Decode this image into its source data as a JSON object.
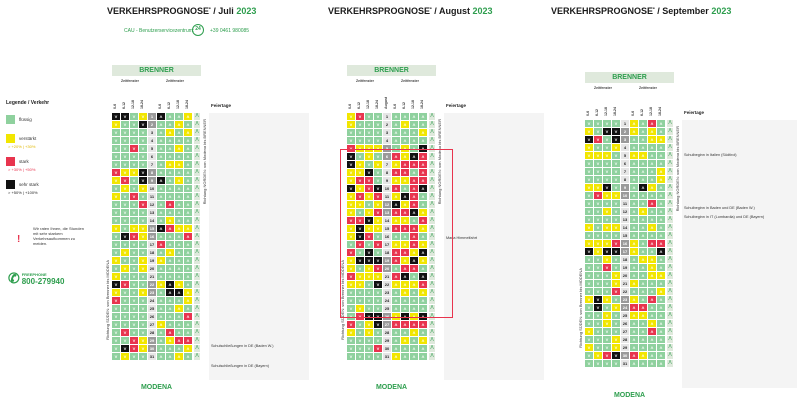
{
  "titles": {
    "juli": {
      "main": "VERKEHRSPROGNOSE",
      "sup": "•",
      "month": " / Juli ",
      "year": "2023"
    },
    "august": {
      "main": "VERKEHRSPROGNOSE",
      "sup": "•",
      "month": " / August ",
      "year": "2023"
    },
    "september": {
      "main": "VERKEHRSPROGNOSE",
      "sup": "•",
      "month": " / September ",
      "year": "2023"
    }
  },
  "cau": {
    "label": "CAU - Benutzerservicezentrum:",
    "icon_text": "24",
    "phone": "+39 0461 980085"
  },
  "legend": {
    "title": "Legende / Verkehr",
    "items": [
      {
        "color": "#8fd19e",
        "label": "flüssig",
        "range": ""
      },
      {
        "color": "#f2e600",
        "label": "verstärkt",
        "range": "> +20% | +30%"
      },
      {
        "color": "#e8344e",
        "label": "stark",
        "range": "> +30% | +50%"
      },
      {
        "color": "#111111",
        "label": "sehr stark",
        "range": "> +50% | +100%"
      }
    ],
    "advice": [
      "Wir raten Ihnen, die Stunden",
      "mit sehr starkem",
      "Verkehrsaufkommen zu",
      "meiden."
    ],
    "freephone_label": "FREEPHONE",
    "freephone_number": "800-279940"
  },
  "bands": {
    "top": "BRENNER",
    "bottom": "MODENA"
  },
  "subheads": {
    "zeitfenster": "Zeitfenster"
  },
  "time_slots": [
    "0-6",
    "6-12",
    "12-18",
    "18-24"
  ],
  "day_header": "August",
  "feiertage_label": "Feiertage",
  "direction_north": "Richtung NORDEN: von Modena bis BRENNER",
  "direction_south": "Richtung SÜDEN: von Brenner bis MODENA",
  "notes": {
    "juli": [
      "Schulschließungen in DE (Baden W.)",
      "Schulschließungen in DE (Bayern)"
    ],
    "august": [
      "Maria Himmelfahrt"
    ],
    "september": [
      "Schulbeginn in Italien (Südtirol)",
      "Schulbeginn in Baden und DE (Baden W.)",
      "Schulbeginn in IT (Lombardia) und DE (Bayern)"
    ]
  },
  "colors": {
    "green": "#8fd19e",
    "yellow": "#f2e600",
    "red": "#e8344e",
    "black": "#111111",
    "accent": "#2e9e4e"
  }
}
